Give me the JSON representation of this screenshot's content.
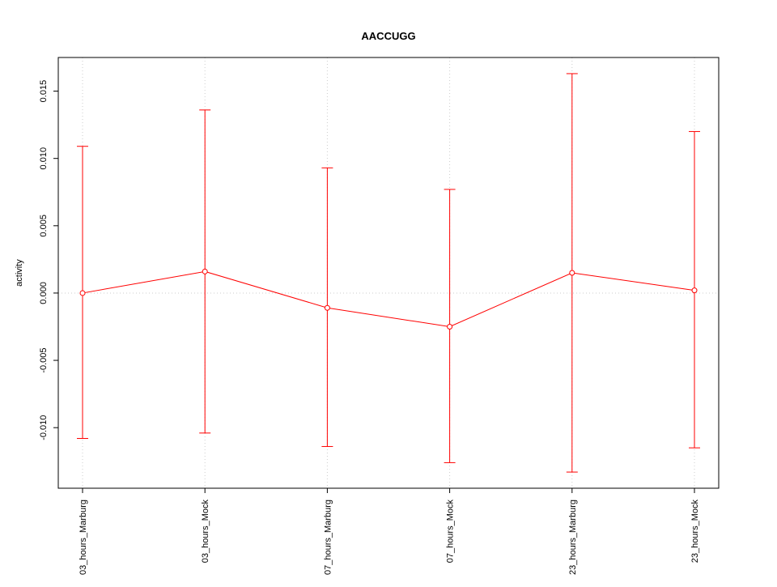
{
  "chart_data": {
    "type": "line",
    "title": "AACCUGG",
    "xlabel": "",
    "ylabel": "activity",
    "categories": [
      "03_hours_Marburg",
      "03_hours_Mock",
      "07_hours_Marburg",
      "07_hours_Mock",
      "23_hours_Marburg",
      "23_hours_Mock"
    ],
    "series": [
      {
        "values": [
          0.0,
          0.0016,
          -0.0011,
          -0.0025,
          0.0015,
          0.0002
        ],
        "error_upper": [
          0.0109,
          0.0136,
          0.0093,
          0.0077,
          0.0163,
          0.012
        ],
        "error_lower": [
          -0.0108,
          -0.0104,
          -0.0114,
          -0.0126,
          -0.0133,
          -0.0115
        ]
      }
    ],
    "ylim": [
      -0.0145,
      0.0175
    ],
    "yticks": [
      -0.01,
      -0.005,
      0.0,
      0.005,
      0.01,
      0.015
    ],
    "ytick_labels": [
      "-0.010",
      "-0.005",
      "0.000",
      "0.005",
      "0.010",
      "0.015"
    ],
    "grid": true,
    "colors": {
      "series": "#ff0000",
      "grid": "#cccccc",
      "axis": "#000000"
    }
  }
}
